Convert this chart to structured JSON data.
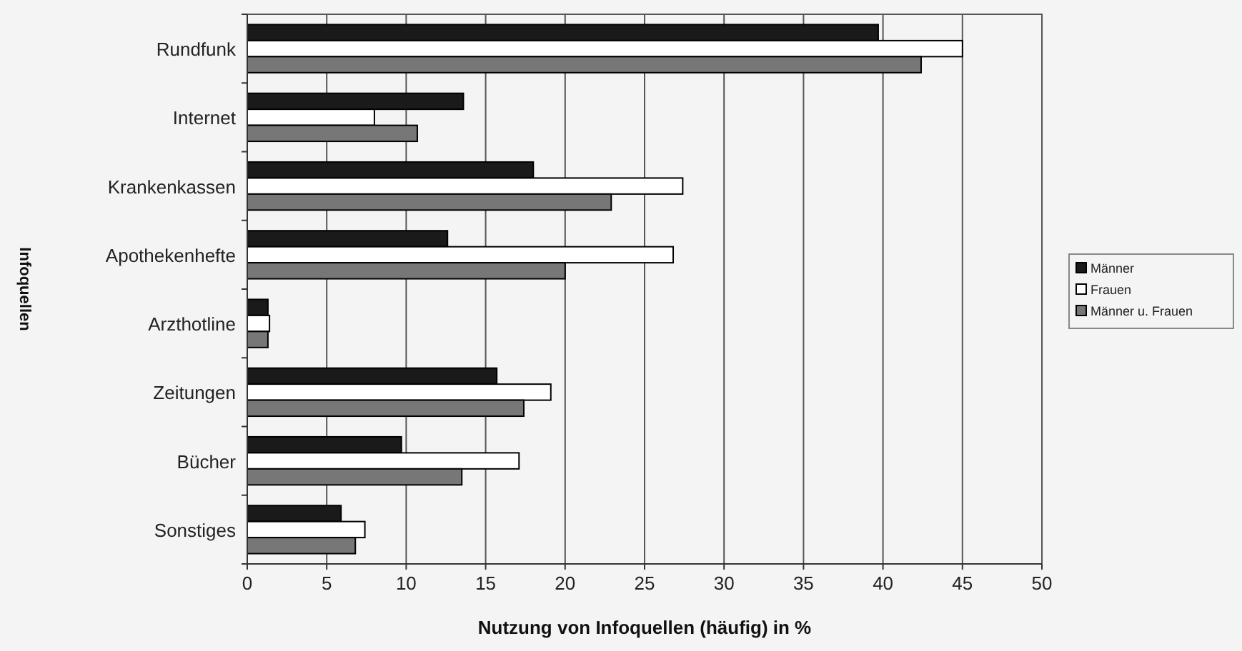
{
  "chart_data": {
    "type": "bar",
    "orientation": "horizontal",
    "xlabel": "Nutzung von Infoquellen (häufig) in %",
    "ylabel": "Infoquellen",
    "categories": [
      "Rundfunk",
      "Internet",
      "Krankenkassen",
      "Apothekenhefte",
      "Arzthotline",
      "Zeitungen",
      "Bücher",
      "Sonstiges"
    ],
    "series": [
      {
        "name": "Männer",
        "color": "#1a1a1a",
        "values": [
          39.7,
          13.6,
          18.0,
          12.6,
          1.3,
          15.7,
          9.7,
          5.9
        ]
      },
      {
        "name": "Frauen",
        "color": "#ffffff",
        "values": [
          45.0,
          8.0,
          27.4,
          26.8,
          1.4,
          19.1,
          17.1,
          7.4
        ]
      },
      {
        "name": "Männer u. Frauen",
        "color": "#777777",
        "values": [
          42.4,
          10.7,
          22.9,
          20.0,
          1.3,
          17.4,
          13.5,
          6.8
        ]
      }
    ],
    "xlim": [
      0,
      50
    ],
    "xticks": [
      0,
      5,
      10,
      15,
      20,
      25,
      30,
      35,
      40,
      45,
      50
    ],
    "grid": "x",
    "legend": "right"
  }
}
